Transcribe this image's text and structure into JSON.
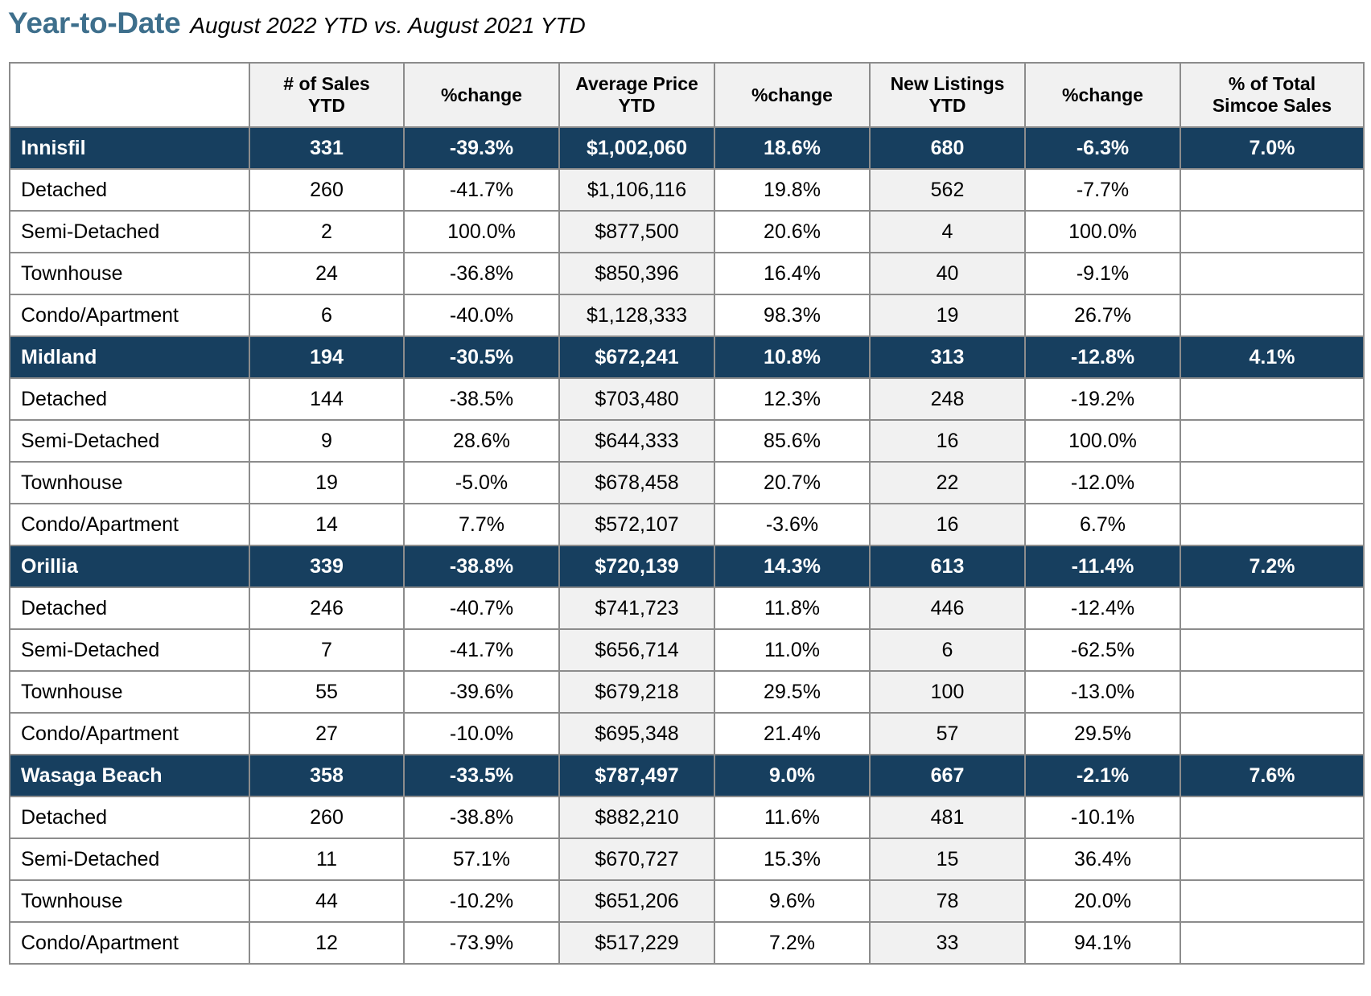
{
  "header": {
    "title": "Year-to-Date",
    "subtitle": "August 2022 YTD vs. August 2021 YTD"
  },
  "table": {
    "columns": [
      "",
      "# of Sales YTD",
      "%change",
      "Average Price YTD",
      "%change",
      "New Listings YTD",
      "%change",
      "% of Total Simcoe Sales"
    ],
    "columns_lines": [
      [
        ""
      ],
      [
        "# of Sales",
        "YTD"
      ],
      [
        "%change"
      ],
      [
        "Average Price",
        "YTD"
      ],
      [
        "%change"
      ],
      [
        "New Listings",
        "YTD"
      ],
      [
        "%change"
      ],
      [
        "% of Total",
        "Simcoe Sales"
      ]
    ],
    "groups": [
      {
        "region": [
          "Innisfil",
          "331",
          "-39.3%",
          "$1,002,060",
          "18.6%",
          "680",
          "-6.3%",
          "7.0%"
        ],
        "rows": [
          [
            "Detached",
            "260",
            "-41.7%",
            "$1,106,116",
            "19.8%",
            "562",
            "-7.7%",
            ""
          ],
          [
            "Semi-Detached",
            "2",
            "100.0%",
            "$877,500",
            "20.6%",
            "4",
            "100.0%",
            ""
          ],
          [
            "Townhouse",
            "24",
            "-36.8%",
            "$850,396",
            "16.4%",
            "40",
            "-9.1%",
            ""
          ],
          [
            "Condo/Apartment",
            "6",
            "-40.0%",
            "$1,128,333",
            "98.3%",
            "19",
            "26.7%",
            ""
          ]
        ]
      },
      {
        "region": [
          "Midland",
          "194",
          "-30.5%",
          "$672,241",
          "10.8%",
          "313",
          "-12.8%",
          "4.1%"
        ],
        "rows": [
          [
            "Detached",
            "144",
            "-38.5%",
            "$703,480",
            "12.3%",
            "248",
            "-19.2%",
            ""
          ],
          [
            "Semi-Detached",
            "9",
            "28.6%",
            "$644,333",
            "85.6%",
            "16",
            "100.0%",
            ""
          ],
          [
            "Townhouse",
            "19",
            "-5.0%",
            "$678,458",
            "20.7%",
            "22",
            "-12.0%",
            ""
          ],
          [
            "Condo/Apartment",
            "14",
            "7.7%",
            "$572,107",
            "-3.6%",
            "16",
            "6.7%",
            ""
          ]
        ]
      },
      {
        "region": [
          "Orillia",
          "339",
          "-38.8%",
          "$720,139",
          "14.3%",
          "613",
          "-11.4%",
          "7.2%"
        ],
        "rows": [
          [
            "Detached",
            "246",
            "-40.7%",
            "$741,723",
            "11.8%",
            "446",
            "-12.4%",
            ""
          ],
          [
            "Semi-Detached",
            "7",
            "-41.7%",
            "$656,714",
            "11.0%",
            "6",
            "-62.5%",
            ""
          ],
          [
            "Townhouse",
            "55",
            "-39.6%",
            "$679,218",
            "29.5%",
            "100",
            "-13.0%",
            ""
          ],
          [
            "Condo/Apartment",
            "27",
            "-10.0%",
            "$695,348",
            "21.4%",
            "57",
            "29.5%",
            ""
          ]
        ]
      },
      {
        "region": [
          "Wasaga Beach",
          "358",
          "-33.5%",
          "$787,497",
          "9.0%",
          "667",
          "-2.1%",
          "7.6%"
        ],
        "rows": [
          [
            "Detached",
            "260",
            "-38.8%",
            "$882,210",
            "11.6%",
            "481",
            "-10.1%",
            ""
          ],
          [
            "Semi-Detached",
            "11",
            "57.1%",
            "$670,727",
            "15.3%",
            "15",
            "36.4%",
            ""
          ],
          [
            "Townhouse",
            "44",
            "-10.2%",
            "$651,206",
            "9.6%",
            "78",
            "20.0%",
            ""
          ],
          [
            "Condo/Apartment",
            "12",
            "-73.9%",
            "$517,229",
            "7.2%",
            "33",
            "94.1%",
            ""
          ]
        ]
      }
    ]
  },
  "colors": {
    "title": "#3e6f8c",
    "region_row_bg": "#173f5f",
    "header_bg": "#f1f1f1",
    "border": "#8c8c8c"
  }
}
